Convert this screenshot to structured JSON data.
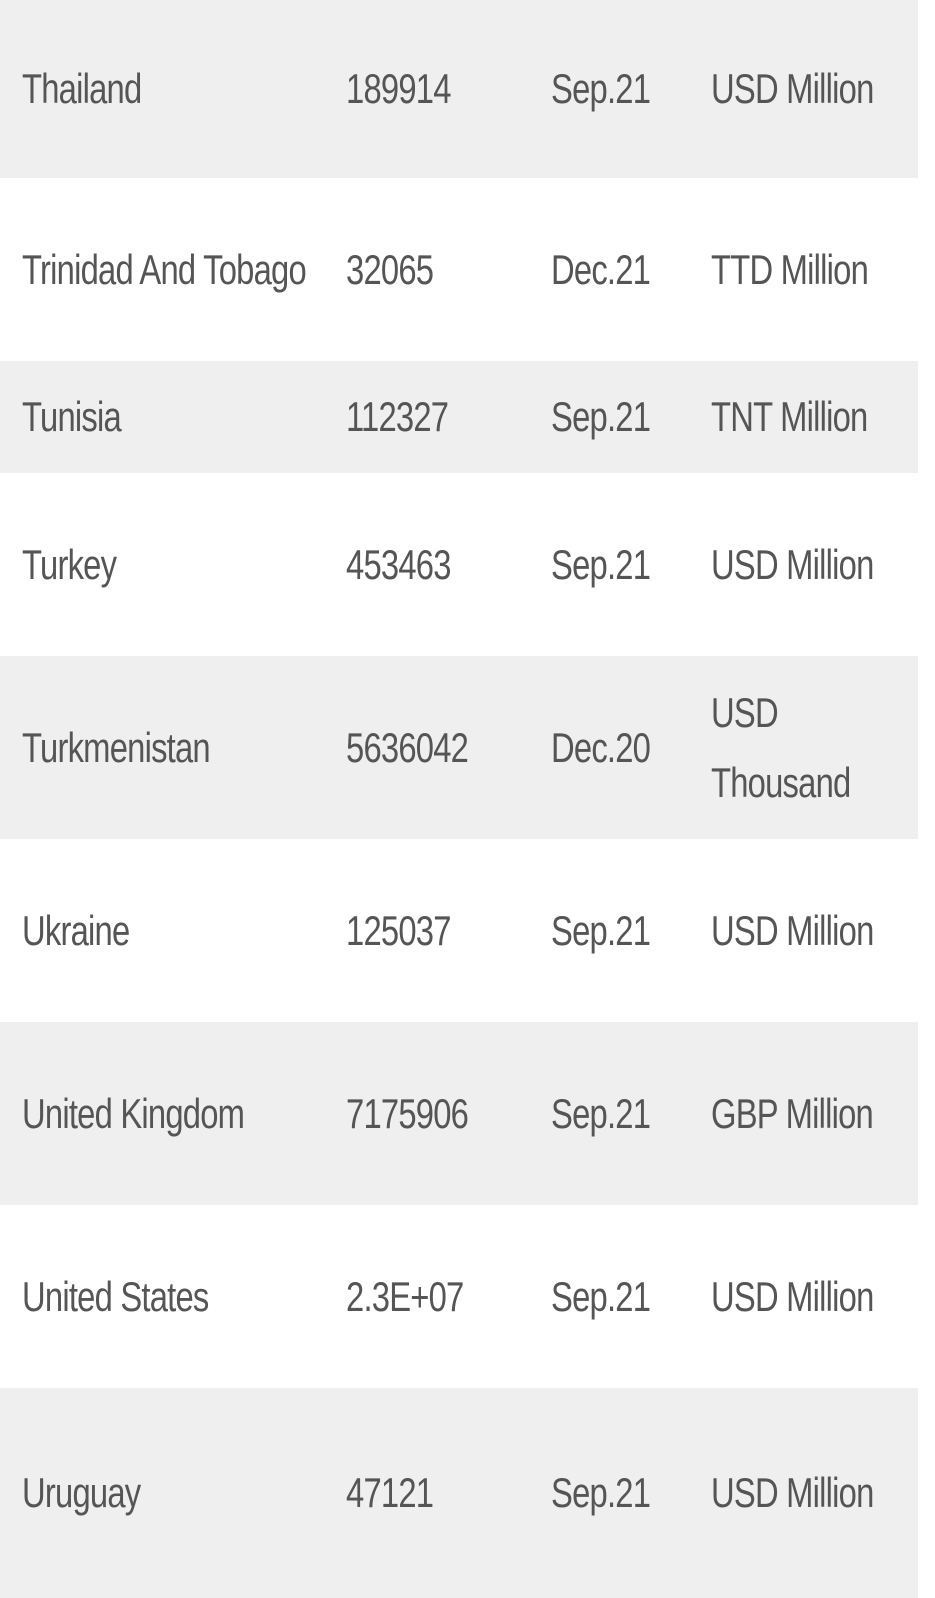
{
  "table": {
    "rows": [
      {
        "country": "Thailand",
        "value": "189914",
        "date": "Sep.21",
        "unit": "USD Million"
      },
      {
        "country": "Trinidad And Tobago",
        "value": "32065",
        "date": "Dec.21",
        "unit": "TTD Million"
      },
      {
        "country": "Tunisia",
        "value": "112327",
        "date": "Sep.21",
        "unit": "TNT Million"
      },
      {
        "country": "Turkey",
        "value": "453463",
        "date": "Sep.21",
        "unit": "USD Million"
      },
      {
        "country": "Turkmenistan",
        "value": "5636042",
        "date": "Dec.20",
        "unit": "USD Thousand"
      },
      {
        "country": "Ukraine",
        "value": "125037",
        "date": "Sep.21",
        "unit": "USD Million"
      },
      {
        "country": "United Kingdom",
        "value": "7175906",
        "date": "Sep.21",
        "unit": "GBP Million"
      },
      {
        "country": "United States",
        "value": "2.3E+07",
        "date": "Sep.21",
        "unit": "USD Million"
      },
      {
        "country": "Uruguay",
        "value": "47121",
        "date": "Sep.21",
        "unit": "USD Million"
      }
    ]
  },
  "colors": {
    "row_shaded": "#efefef",
    "row_plain": "#ffffff",
    "text": "#555555"
  }
}
